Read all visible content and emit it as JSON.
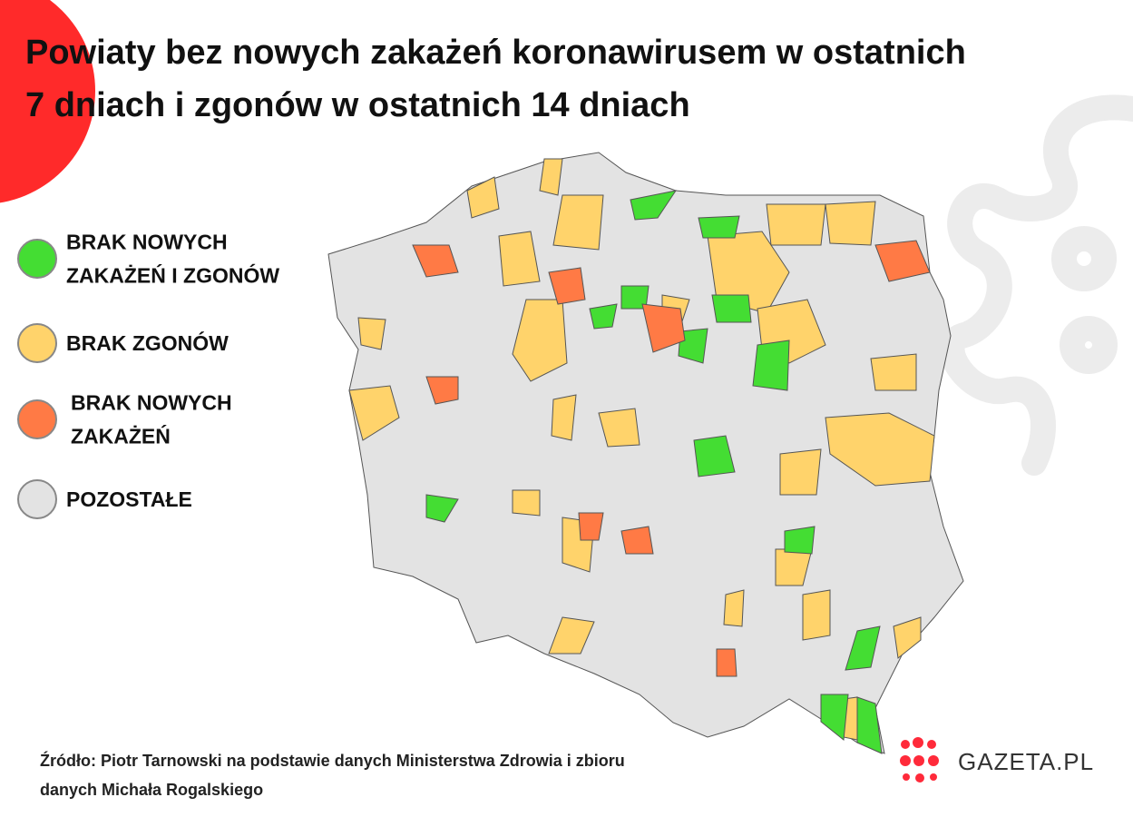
{
  "header": {
    "title_lines": [
      "Powiaty bez nowych zakażeń koronawirusem w ostatnich",
      "7 dniach i zgonów w ostatnich 14 dniach"
    ]
  },
  "legend": {
    "items": [
      {
        "lines": [
          "BRAK NOWYCH",
          "ZAKAŻEŃ I ZGONÓW"
        ],
        "color": "#44dd33"
      },
      {
        "lines": [
          "BRAK ZGONÓW"
        ],
        "color": "#ffd36b"
      },
      {
        "lines": [
          "BRAK NOWYCH",
          "ZAKAŻEŃ"
        ],
        "color": "#ff7a45"
      },
      {
        "lines": [
          "POZOSTAŁE"
        ],
        "color": "#e3e3e3"
      }
    ]
  },
  "source": {
    "lines": [
      "Źródło: Piotr Tarnowski na podstawie danych Ministerstwa Zdrowia i zbioru",
      "danych Michała Rogalskiego"
    ]
  },
  "logo": {
    "text": "GAZETA.PL"
  }
}
